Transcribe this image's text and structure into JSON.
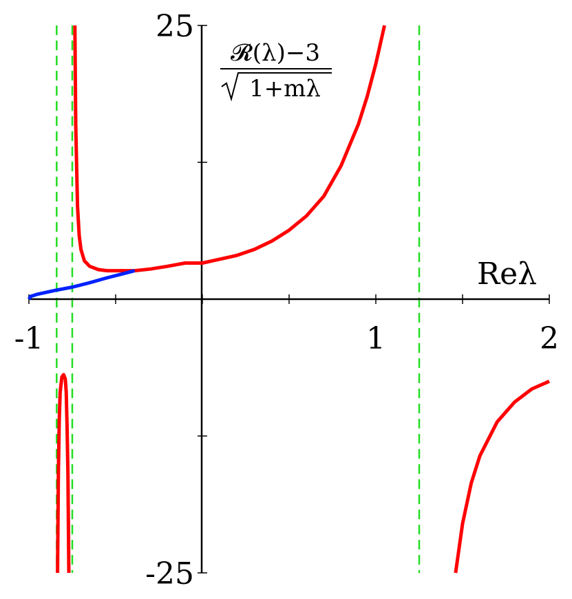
{
  "chart_data": {
    "type": "line",
    "title": "",
    "xlabel": "Reλ",
    "ylabel_numerator": "𝓡(λ)−3",
    "ylabel_denominator": "1+mλ",
    "xlim": [
      -1,
      2
    ],
    "ylim": [
      -25,
      25
    ],
    "x_ticks": [
      -1,
      -0.5,
      0,
      0.5,
      1,
      1.5,
      2
    ],
    "x_tick_labels": [
      {
        "x": -1,
        "text": "-1"
      },
      {
        "x": 1,
        "text": "1"
      },
      {
        "x": 2,
        "text": "2"
      }
    ],
    "y_ticks": [
      -25,
      -12.5,
      0,
      12.5,
      25
    ],
    "y_tick_labels": [
      {
        "y": 25,
        "text": "25"
      },
      {
        "y": -25,
        "text": "-25"
      }
    ],
    "asymptotes_x": [
      -0.84,
      -0.75,
      1.25
    ],
    "asymptote_color": "#22dd22",
    "series": [
      {
        "color": "#ff0000",
        "points": [
          [
            -0.735,
            25
          ],
          [
            -0.73,
            16.0
          ],
          [
            -0.72,
            8.5
          ],
          [
            -0.71,
            5.8
          ],
          [
            -0.7,
            4.55
          ],
          [
            -0.68,
            3.5
          ],
          [
            -0.65,
            3.0
          ],
          [
            -0.6,
            2.7
          ],
          [
            -0.55,
            2.6
          ],
          [
            -0.5,
            2.6
          ],
          [
            -0.39,
            2.6
          ],
          [
            -0.3,
            2.75
          ],
          [
            -0.2,
            3.0
          ],
          [
            -0.1,
            3.3
          ],
          [
            0.0,
            3.3
          ],
          [
            0.1,
            3.65
          ],
          [
            0.2,
            4.0
          ],
          [
            0.3,
            4.55
          ],
          [
            0.4,
            5.3
          ],
          [
            0.5,
            6.3
          ],
          [
            0.6,
            7.6
          ],
          [
            0.7,
            9.4
          ],
          [
            0.8,
            12.2
          ],
          [
            0.9,
            16.0
          ],
          [
            0.95,
            18.5
          ],
          [
            1.0,
            21.5
          ],
          [
            1.05,
            25
          ]
        ]
      },
      {
        "color": "#ff0000",
        "points": [
          [
            -0.835,
            -25
          ],
          [
            -0.83,
            -16.0
          ],
          [
            -0.825,
            -11.0
          ],
          [
            -0.82,
            -8.5
          ],
          [
            -0.81,
            -7.1
          ],
          [
            -0.8,
            -6.9
          ],
          [
            -0.79,
            -7.3
          ],
          [
            -0.785,
            -8.5
          ],
          [
            -0.78,
            -11.5
          ],
          [
            -0.775,
            -16.0
          ],
          [
            -0.77,
            -25
          ]
        ]
      },
      {
        "color": "#ff0000",
        "points": [
          [
            1.46,
            -25
          ],
          [
            1.5,
            -20.5
          ],
          [
            1.55,
            -16.8
          ],
          [
            1.6,
            -14.3
          ],
          [
            1.7,
            -11.2
          ],
          [
            1.8,
            -9.4
          ],
          [
            1.9,
            -8.2
          ],
          [
            2.0,
            -7.5
          ]
        ]
      },
      {
        "color": "#0022ff",
        "points": [
          [
            -1.0,
            0.0
          ],
          [
            -0.99,
            0.25
          ],
          [
            -0.95,
            0.45
          ],
          [
            -0.85,
            0.8
          ],
          [
            -0.75,
            1.1
          ],
          [
            -0.65,
            1.5
          ],
          [
            -0.55,
            1.95
          ],
          [
            -0.45,
            2.35
          ],
          [
            -0.39,
            2.6
          ]
        ]
      }
    ]
  }
}
